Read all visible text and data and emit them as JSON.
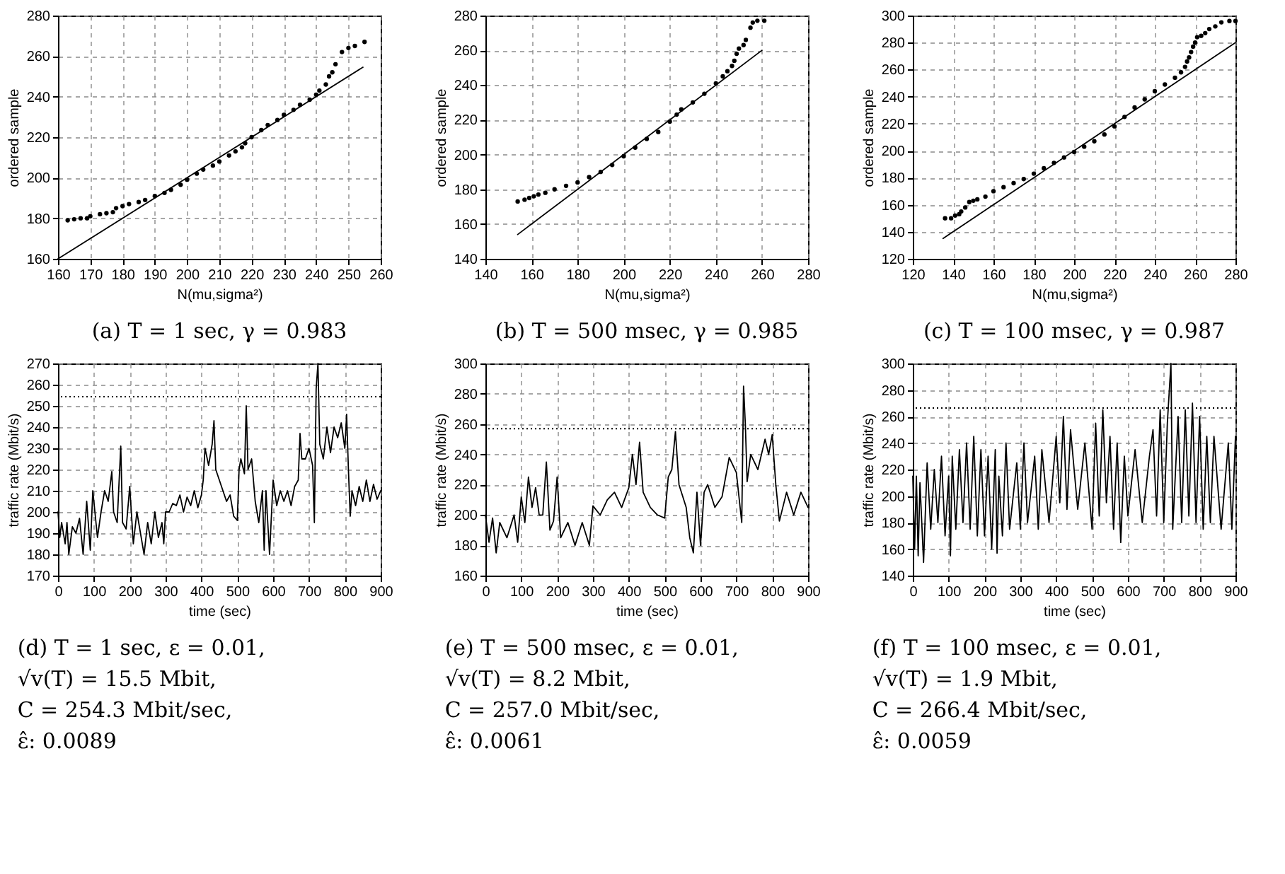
{
  "chart_data": [
    {
      "type": "scatter",
      "xlabel": "N(mu,sigma²)",
      "ylabel": "ordered sample",
      "xlim": [
        160,
        260
      ],
      "ylim": [
        160,
        280
      ],
      "xticks": [
        160,
        170,
        180,
        190,
        200,
        210,
        220,
        230,
        240,
        250,
        260
      ],
      "yticks": [
        160,
        180,
        200,
        220,
        240,
        260,
        280
      ],
      "grid": true,
      "annotations": [
        "(a)  T = 1 sec, γ = 0.983"
      ],
      "series": [
        {
          "marker": "circle",
          "color": "#000000",
          "x": [
            163,
            165,
            167,
            169,
            170,
            173,
            175,
            177,
            178,
            180,
            182,
            185,
            187,
            190,
            193,
            195,
            198,
            200,
            203,
            205,
            208,
            210,
            213,
            215,
            217,
            218,
            220,
            223,
            225,
            228,
            230,
            233,
            235,
            238,
            240,
            241,
            243,
            244,
            245,
            246,
            248,
            250,
            252,
            255
          ],
          "values": [
            179,
            179.5,
            180,
            180,
            181,
            182,
            182.5,
            183,
            185,
            186,
            187,
            188,
            189,
            191,
            192.5,
            194,
            196.5,
            199,
            202,
            204,
            206,
            208,
            211,
            213,
            215,
            217,
            220,
            223.5,
            226,
            228.5,
            231,
            233.5,
            236,
            238.5,
            241,
            243,
            246,
            250,
            252,
            256,
            262,
            264,
            265,
            267
          ]
        },
        {
          "type": "line",
          "color": "#000000",
          "x": [
            160,
            254.5
          ],
          "values": [
            160,
            254.5
          ]
        }
      ]
    },
    {
      "type": "scatter",
      "xlabel": "N(mu,sigma²)",
      "ylabel": "ordered sample",
      "xlim": [
        140,
        280
      ],
      "ylim": [
        140,
        280
      ],
      "xticks": [
        140,
        160,
        180,
        200,
        220,
        240,
        260,
        280
      ],
      "yticks": [
        140,
        160,
        180,
        200,
        220,
        240,
        260,
        280
      ],
      "grid": true,
      "annotations": [
        "(b)  T = 500 msec, γ = 0.985"
      ],
      "series": [
        {
          "marker": "circle",
          "color": "#000000",
          "x": [
            154,
            157,
            159,
            161,
            163,
            166,
            170,
            175,
            180,
            185,
            190,
            195,
            200,
            205,
            210,
            215,
            220,
            223,
            225,
            230,
            235,
            240,
            243,
            245,
            247,
            248,
            249,
            250,
            252,
            253,
            255,
            256,
            258,
            261
          ],
          "values": [
            173,
            174,
            175,
            176,
            177,
            178,
            180,
            182,
            184,
            187,
            190,
            194,
            199,
            204,
            209,
            213,
            219,
            223,
            226,
            230,
            235,
            241,
            245,
            248,
            251,
            254,
            258,
            261,
            263,
            266,
            273,
            276,
            277,
            277
          ]
        },
        {
          "type": "line",
          "color": "#000000",
          "x": [
            154,
            260
          ],
          "values": [
            154,
            260
          ]
        }
      ]
    },
    {
      "type": "scatter",
      "xlabel": "N(mu,sigma²)",
      "ylabel": "ordered sample",
      "xlim": [
        120,
        280
      ],
      "ylim": [
        120,
        300
      ],
      "xticks": [
        120,
        140,
        160,
        180,
        200,
        220,
        240,
        260,
        280
      ],
      "yticks": [
        120,
        140,
        160,
        180,
        200,
        220,
        240,
        260,
        280,
        300
      ],
      "grid": true,
      "annotations": [
        "(c)  T = 100 msec, γ = 0.987"
      ],
      "series": [
        {
          "marker": "circle",
          "color": "#000000",
          "x": [
            136,
            139,
            141,
            143,
            144,
            146,
            148,
            150,
            152,
            156,
            160,
            165,
            170,
            175,
            180,
            185,
            190,
            195,
            200,
            205,
            210,
            215,
            220,
            225,
            230,
            235,
            240,
            245,
            250,
            253,
            255,
            256,
            257,
            258,
            259,
            260,
            261,
            263,
            265,
            267,
            270,
            273,
            277,
            280
          ],
          "values": [
            150,
            150,
            152,
            153,
            155,
            158,
            162,
            163,
            164,
            166,
            170,
            173,
            176,
            179,
            183,
            187,
            191,
            195,
            199,
            203,
            207,
            212,
            218,
            225,
            232,
            238,
            244,
            249,
            254,
            258,
            262,
            266,
            269,
            273,
            277,
            280,
            284,
            285,
            287,
            290,
            292,
            295,
            296,
            296
          ]
        },
        {
          "type": "line",
          "color": "#000000",
          "x": [
            135,
            280
          ],
          "values": [
            135,
            280
          ]
        }
      ]
    },
    {
      "type": "line",
      "xlabel": "time (sec)",
      "ylabel": "traffic rate (Mbit/s)",
      "xlim": [
        0,
        900
      ],
      "ylim": [
        170,
        270
      ],
      "xticks": [
        0,
        100,
        200,
        300,
        400,
        500,
        600,
        700,
        800,
        900
      ],
      "yticks": [
        170,
        180,
        190,
        200,
        210,
        220,
        230,
        240,
        250,
        260,
        270
      ],
      "grid": true,
      "ref_lines": [
        {
          "axis": "y",
          "value": 254.3,
          "line_style": "dotted",
          "color": "#000000"
        }
      ],
      "annotations": [
        "(d)  T = 1 sec, ε = 0.01,",
        "√v(T) = 15.5 Mbit,",
        "C = 254.3 Mbit/sec,",
        "ε̂: 0.0089"
      ],
      "series": [
        {
          "color": "#000000",
          "x": [
            0,
            5,
            10,
            20,
            25,
            30,
            40,
            50,
            60,
            70,
            80,
            90,
            97,
            110,
            120,
            130,
            140,
            150,
            155,
            165,
            175,
            180,
            190,
            200,
            210,
            220,
            230,
            240,
            250,
            260,
            270,
            280,
            290,
            295,
            300,
            310,
            320,
            330,
            340,
            350,
            360,
            370,
            380,
            390,
            400,
            405,
            410,
            420,
            430,
            435,
            440,
            450,
            460,
            470,
            480,
            490,
            500,
            505,
            510,
            520,
            525,
            530,
            540,
            550,
            560,
            570,
            575,
            580,
            590,
            600,
            610,
            620,
            630,
            640,
            650,
            660,
            670,
            675,
            680,
            690,
            700,
            710,
            715,
            720,
            725,
            730,
            740,
            750,
            760,
            770,
            780,
            790,
            800,
            805,
            810,
            815,
            820,
            830,
            840,
            850,
            860,
            870,
            880,
            890,
            900
          ],
          "values": [
            200,
            188,
            195,
            185,
            195,
            180,
            193,
            190,
            197,
            180,
            205,
            182,
            210,
            188,
            200,
            210,
            205,
            219,
            200,
            195,
            231,
            195,
            192,
            212,
            185,
            200,
            190,
            180,
            195,
            185,
            200,
            188,
            195,
            185,
            200,
            200,
            204,
            203,
            208,
            200,
            207,
            203,
            210,
            202,
            208,
            215,
            230,
            222,
            232,
            243,
            220,
            215,
            210,
            205,
            208,
            198,
            196,
            220,
            225,
            218,
            250,
            220,
            225,
            205,
            195,
            210,
            182,
            210,
            180,
            215,
            203,
            210,
            205,
            210,
            203,
            212,
            215,
            237,
            225,
            225,
            230,
            222,
            195,
            258,
            270,
            232,
            225,
            240,
            228,
            240,
            235,
            242,
            230,
            246,
            220,
            198,
            210,
            203,
            212,
            205,
            215,
            205,
            213,
            206,
            210
          ]
        }
      ]
    },
    {
      "type": "line",
      "xlabel": "time (sec)",
      "ylabel": "traffic rate (Mbit/s)",
      "xlim": [
        0,
        900
      ],
      "ylim": [
        160,
        300
      ],
      "xticks": [
        0,
        100,
        200,
        300,
        400,
        500,
        600,
        700,
        800,
        900
      ],
      "yticks": [
        160,
        180,
        200,
        220,
        240,
        260,
        280,
        300
      ],
      "grid": true,
      "ref_lines": [
        {
          "axis": "y",
          "value": 257.0,
          "line_style": "dotted",
          "color": "#000000"
        }
      ],
      "annotations": [
        "(e)  T = 500 msec, ε = 0.01,",
        "√v(T) = 8.2 Mbit,",
        "C = 257.0 Mbit/sec,",
        "ε̂: 0.0061"
      ],
      "series": [
        {
          "color": "#000000",
          "x": [
            0,
            10,
            20,
            30,
            40,
            60,
            80,
            90,
            100,
            110,
            120,
            130,
            140,
            150,
            160,
            170,
            180,
            190,
            200,
            210,
            230,
            250,
            270,
            290,
            300,
            320,
            340,
            360,
            380,
            400,
            410,
            420,
            430,
            440,
            460,
            480,
            500,
            510,
            520,
            530,
            540,
            560,
            570,
            580,
            590,
            600,
            610,
            620,
            640,
            660,
            680,
            700,
            715,
            720,
            725,
            730,
            740,
            760,
            780,
            790,
            800,
            810,
            820,
            840,
            860,
            880,
            900
          ],
          "values": [
            200,
            182,
            198,
            175,
            195,
            185,
            200,
            182,
            212,
            195,
            225,
            205,
            218,
            200,
            200,
            235,
            190,
            196,
            225,
            185,
            195,
            180,
            195,
            180,
            206,
            200,
            210,
            215,
            205,
            218,
            240,
            220,
            248,
            215,
            205,
            200,
            198,
            225,
            230,
            255,
            220,
            205,
            185,
            175,
            215,
            180,
            215,
            220,
            205,
            212,
            238,
            228,
            195,
            285,
            260,
            222,
            240,
            230,
            250,
            240,
            253,
            220,
            196,
            215,
            200,
            215,
            205
          ]
        }
      ]
    },
    {
      "type": "line",
      "xlabel": "time (sec)",
      "ylabel": "traffic rate (Mbit/s)",
      "xlim": [
        0,
        900
      ],
      "ylim": [
        140,
        300
      ],
      "xticks": [
        0,
        100,
        200,
        300,
        400,
        500,
        600,
        700,
        800,
        900
      ],
      "yticks": [
        140,
        160,
        180,
        200,
        220,
        240,
        260,
        280,
        300
      ],
      "grid": true,
      "ref_lines": [
        {
          "axis": "y",
          "value": 266.4,
          "line_style": "dotted",
          "color": "#000000"
        }
      ],
      "annotations": [
        "(f)  T = 100 msec, ε = 0.01,",
        "√v(T) = 1.9 Mbit,",
        "C = 266.4 Mbit/sec,",
        "ε̂: 0.0059"
      ],
      "series": [
        {
          "color": "#000000",
          "x": [
            0,
            5,
            10,
            15,
            20,
            30,
            40,
            50,
            60,
            70,
            80,
            90,
            100,
            105,
            110,
            120,
            130,
            140,
            150,
            160,
            170,
            180,
            190,
            200,
            210,
            220,
            230,
            235,
            240,
            250,
            260,
            270,
            290,
            300,
            310,
            320,
            340,
            350,
            360,
            380,
            400,
            410,
            420,
            430,
            440,
            460,
            480,
            500,
            510,
            520,
            530,
            540,
            550,
            560,
            570,
            580,
            590,
            600,
            620,
            640,
            660,
            670,
            680,
            690,
            700,
            710,
            720,
            725,
            740,
            750,
            760,
            770,
            780,
            790,
            800,
            810,
            820,
            830,
            840,
            860,
            880,
            890,
            900
          ],
          "values": [
            215,
            160,
            215,
            155,
            210,
            150,
            225,
            175,
            220,
            180,
            230,
            170,
            215,
            155,
            230,
            175,
            235,
            180,
            240,
            175,
            245,
            170,
            235,
            170,
            230,
            160,
            235,
            157,
            215,
            170,
            240,
            175,
            225,
            175,
            240,
            180,
            230,
            175,
            235,
            180,
            245,
            195,
            260,
            190,
            250,
            190,
            240,
            175,
            255,
            185,
            265,
            195,
            245,
            175,
            240,
            165,
            230,
            185,
            235,
            180,
            230,
            250,
            185,
            265,
            180,
            255,
            300,
            175,
            260,
            180,
            265,
            185,
            270,
            180,
            260,
            175,
            245,
            180,
            245,
            175,
            240,
            175,
            245
          ]
        }
      ]
    }
  ]
}
